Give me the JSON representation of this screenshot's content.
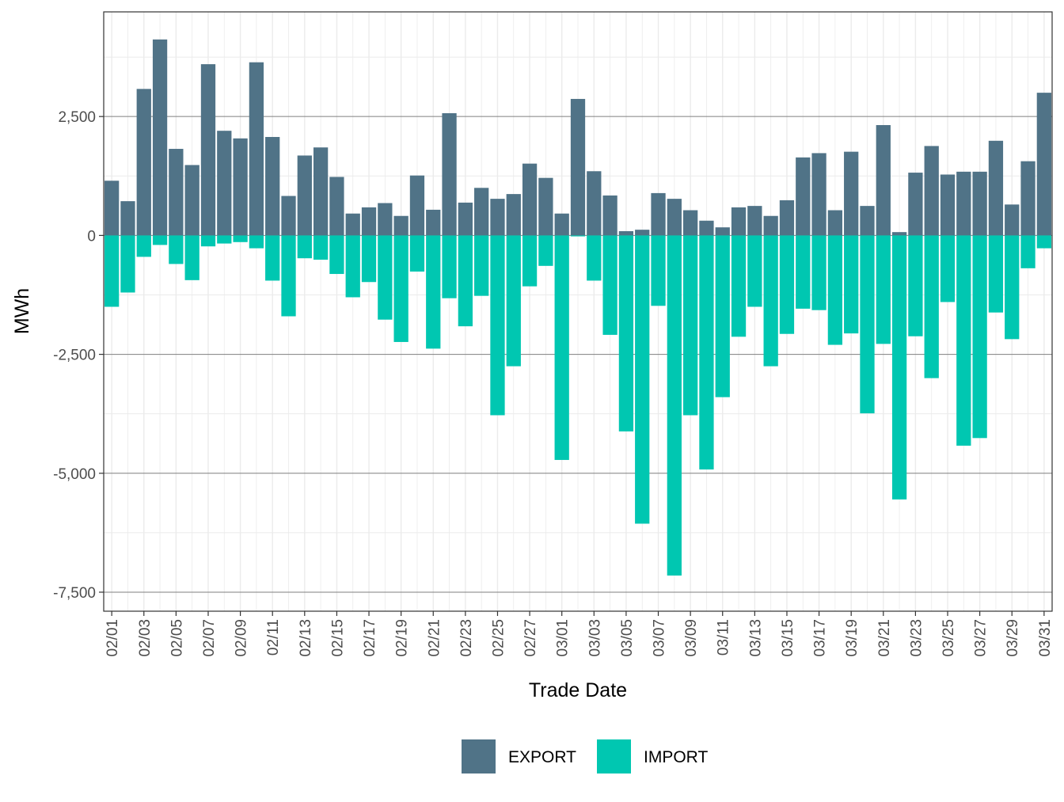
{
  "chart_data": {
    "type": "bar",
    "title": "",
    "xlabel": "Trade Date",
    "ylabel": "MWh",
    "ylim": [
      -7900,
      4700
    ],
    "yticks": [
      -7500,
      -5000,
      -2500,
      0,
      2500
    ],
    "ytick_labels": [
      "-7,500",
      "-5,000",
      "-2,500",
      "0",
      "2,500"
    ],
    "grid": true,
    "legend_position": "bottom",
    "categories": [
      "02/01",
      "02/02",
      "02/03",
      "02/04",
      "02/05",
      "02/06",
      "02/07",
      "02/08",
      "02/09",
      "02/10",
      "02/11",
      "02/12",
      "02/13",
      "02/14",
      "02/15",
      "02/16",
      "02/17",
      "02/18",
      "02/19",
      "02/20",
      "02/21",
      "02/22",
      "02/23",
      "02/24",
      "02/25",
      "02/26",
      "02/27",
      "02/28",
      "03/01",
      "03/02",
      "03/03",
      "03/04",
      "03/05",
      "03/06",
      "03/07",
      "03/08",
      "03/09",
      "03/10",
      "03/11",
      "03/12",
      "03/13",
      "03/14",
      "03/15",
      "03/16",
      "03/17",
      "03/18",
      "03/19",
      "03/20",
      "03/21",
      "03/22",
      "03/23",
      "03/24",
      "03/25",
      "03/26",
      "03/27",
      "03/28",
      "03/29",
      "03/30",
      "03/31"
    ],
    "series": [
      {
        "name": "EXPORT",
        "color": "#507387",
        "values": [
          1150,
          720,
          3080,
          4120,
          1820,
          1480,
          3600,
          2200,
          2040,
          3640,
          2070,
          830,
          1680,
          1850,
          1230,
          460,
          590,
          680,
          410,
          1260,
          540,
          2570,
          690,
          1000,
          770,
          870,
          1510,
          1210,
          460,
          2870,
          1350,
          840,
          90,
          120,
          890,
          770,
          530,
          310,
          170,
          590,
          620,
          410,
          740,
          1640,
          1730,
          530,
          1760,
          620,
          2320,
          70,
          1320,
          1880,
          1280,
          1340,
          1340,
          1990,
          650,
          1560,
          3000
        ]
      },
      {
        "name": "IMPORT",
        "color": "#00c7b1",
        "values": [
          -1500,
          -1200,
          -450,
          -200,
          -600,
          -940,
          -230,
          -170,
          -140,
          -270,
          -950,
          -1700,
          -480,
          -510,
          -810,
          -1300,
          -980,
          -1770,
          -2240,
          -760,
          -2380,
          -1320,
          -1910,
          -1270,
          -3780,
          -2750,
          -1070,
          -640,
          -4720,
          -20,
          -950,
          -2090,
          -4120,
          -6060,
          -1480,
          -7150,
          -3780,
          -4920,
          -3400,
          -2130,
          -1500,
          -2750,
          -2070,
          -1540,
          -1570,
          -2300,
          -2060,
          -3740,
          -2280,
          -5550,
          -2120,
          -3000,
          -1400,
          -4420,
          -4260,
          -1620,
          -2180,
          -690,
          -270
        ]
      }
    ]
  }
}
